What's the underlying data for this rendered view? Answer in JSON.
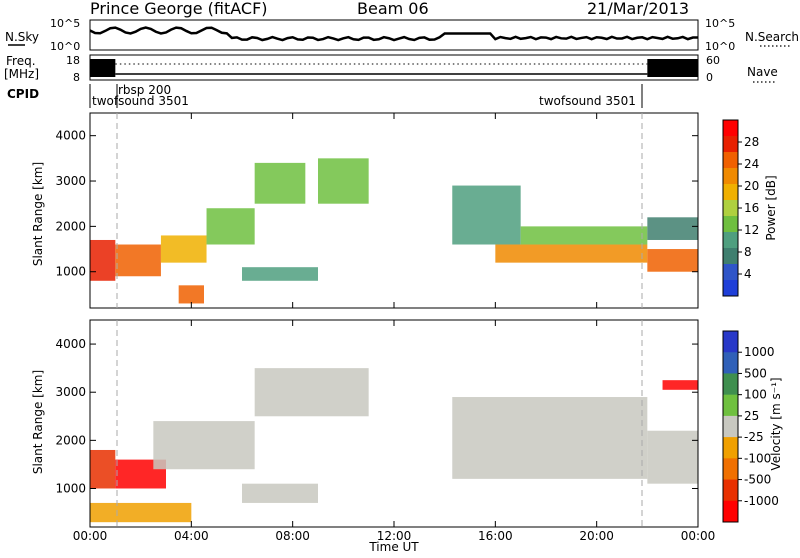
{
  "header": {
    "station": "Prince George (fitACF)",
    "beam": "Beam 06",
    "date": "21/Mar/2013"
  },
  "top_panels": {
    "nsky_label": "N.Sky",
    "nsky_ticks": [
      "10^5",
      "10^0"
    ],
    "nsearch_label": "N.Search",
    "nsearch_ticks": [
      "10^5",
      "10^0"
    ],
    "freq_label_line1": "Freq.",
    "freq_label_line2": "[MHz]",
    "freq_ticks": [
      "18",
      "8"
    ],
    "nave_label": "Nave",
    "nave_ticks": [
      "60",
      "0"
    ],
    "cpid_label": "CPID",
    "cpid_entries": [
      {
        "name": "rbsp 200"
      },
      {
        "name": "twofsound 3501"
      },
      {
        "name": "twofsound 3501"
      }
    ]
  },
  "power_panel": {
    "ylabel": "Slant Range [km]",
    "yticks": [
      "4000",
      "3000",
      "2000",
      "1000"
    ],
    "colorbar_label": "Power [dB]",
    "colorbar_ticks": [
      "28",
      "24",
      "20",
      "16",
      "12",
      "8",
      "4"
    ],
    "colors": [
      "#1f3fd8",
      "#2f55c8",
      "#3f7f6f",
      "#4f9f7f",
      "#6fbf3f",
      "#afd03f",
      "#f0b000",
      "#f08a00",
      "#f06000",
      "#e82000",
      "#ff0000"
    ]
  },
  "velocity_panel": {
    "ylabel": "Slant Range [km]",
    "yticks": [
      "4000",
      "3000",
      "2000",
      "1000"
    ],
    "colorbar_label": "Velocity [m s⁻¹]",
    "colorbar_ticks": [
      "1000",
      "500",
      "100",
      "25",
      "-25",
      "-100",
      "-500",
      "-1000"
    ],
    "colors": [
      "#2838c8",
      "#3060b8",
      "#3f8f4f",
      "#6fc03f",
      "#c8c8c0",
      "#f0a000",
      "#f07000",
      "#e83000",
      "#ff0000"
    ]
  },
  "x_axis": {
    "xlabel": "Time UT",
    "ticks": [
      "00:00",
      "04:00",
      "08:00",
      "12:00",
      "16:00",
      "20:00",
      "00:00"
    ]
  },
  "chart_data": {
    "type": "heatmap",
    "title": "Prince George (fitACF) Beam 06 21/Mar/2013",
    "xlabel": "Time UT",
    "ylabel": "Slant Range [km]",
    "xlim": [
      "00:00",
      "24:00"
    ],
    "ylim": [
      200,
      4500
    ],
    "grid": false,
    "panels": [
      {
        "name": "Power [dB]",
        "colorbar_range": [
          0,
          32
        ],
        "regions": [
          {
            "t0": 0.0,
            "t1": 1.0,
            "r0": 800,
            "r1": 1700,
            "level": 28
          },
          {
            "t0": 1.0,
            "t1": 2.8,
            "r0": 900,
            "r1": 1600,
            "level": 24
          },
          {
            "t0": 2.8,
            "t1": 4.6,
            "r0": 1200,
            "r1": 1800,
            "level": 20
          },
          {
            "t0": 4.6,
            "t1": 6.5,
            "r0": 1600,
            "r1": 2400,
            "level": 14
          },
          {
            "t0": 3.5,
            "t1": 4.5,
            "r0": 300,
            "r1": 700,
            "level": 26
          },
          {
            "t0": 6.0,
            "t1": 9.0,
            "r0": 800,
            "r1": 1100,
            "level": 10
          },
          {
            "t0": 6.5,
            "t1": 8.5,
            "r0": 2500,
            "r1": 3400,
            "level": 12
          },
          {
            "t0": 9.0,
            "t1": 11.0,
            "r0": 2500,
            "r1": 3500,
            "level": 12
          },
          {
            "t0": 14.3,
            "t1": 17.0,
            "r0": 1600,
            "r1": 2900,
            "level": 10
          },
          {
            "t0": 16.0,
            "t1": 22.0,
            "r0": 1200,
            "r1": 1600,
            "level": 22
          },
          {
            "t0": 17.0,
            "t1": 22.0,
            "r0": 1600,
            "r1": 2000,
            "level": 12
          },
          {
            "t0": 22.0,
            "t1": 24.0,
            "r0": 1000,
            "r1": 1500,
            "level": 24
          },
          {
            "t0": 22.0,
            "t1": 24.0,
            "r0": 1700,
            "r1": 2200,
            "level": 6
          }
        ]
      },
      {
        "name": "Velocity [m s-1]",
        "colorbar_range": [
          -1000,
          1000
        ],
        "regions": [
          {
            "t0": 0.0,
            "t1": 1.0,
            "r0": 1000,
            "r1": 1800,
            "level": -700
          },
          {
            "t0": 1.0,
            "t1": 3.0,
            "r0": 1000,
            "r1": 1600,
            "level": -800
          },
          {
            "t0": 0.0,
            "t1": 4.0,
            "r0": 300,
            "r1": 700,
            "level": -200
          },
          {
            "t0": 2.5,
            "t1": 6.5,
            "r0": 1400,
            "r1": 2400,
            "level": 0
          },
          {
            "t0": 6.0,
            "t1": 9.0,
            "r0": 700,
            "r1": 1100,
            "level": 0
          },
          {
            "t0": 6.5,
            "t1": 11.0,
            "r0": 2500,
            "r1": 3500,
            "level": 0
          },
          {
            "t0": 14.3,
            "t1": 22.0,
            "r0": 1200,
            "r1": 2900,
            "level": 0
          },
          {
            "t0": 22.0,
            "t1": 24.0,
            "r0": 1100,
            "r1": 2200,
            "level": 0
          },
          {
            "t0": 22.6,
            "t1": 24.0,
            "r0": 3050,
            "r1": 3250,
            "level": -800
          }
        ]
      }
    ]
  }
}
